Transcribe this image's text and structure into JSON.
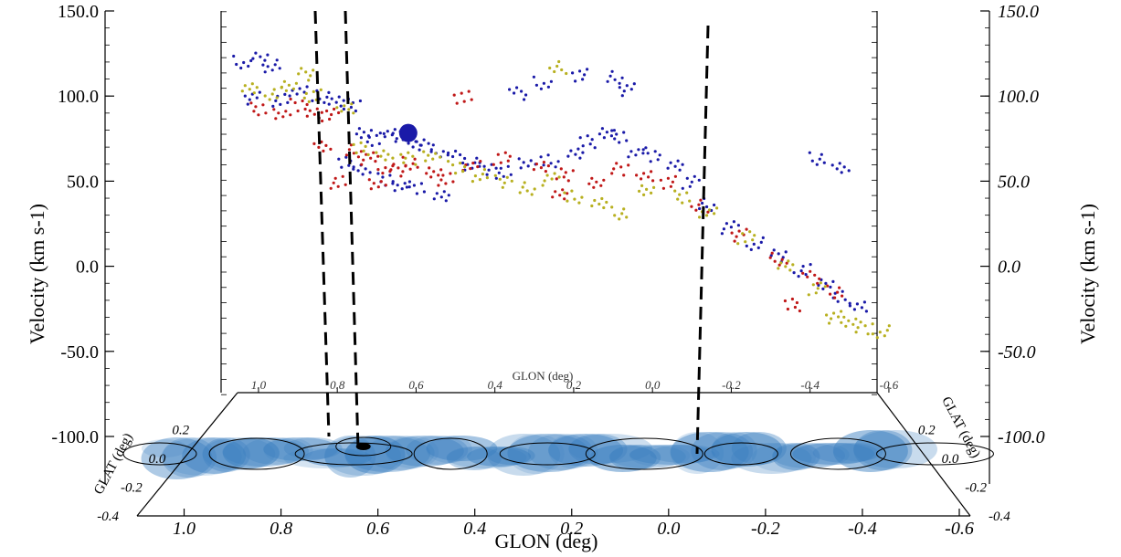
{
  "chart_data": {
    "type": "scatter",
    "projection": "3d-position-position-velocity",
    "xlabel": "GLON (deg)",
    "ylabel_left": "Velocity (km s-1)",
    "ylabel_right": "Velocity (km s-1)",
    "zlabel": "GLAT (deg)",
    "xlim": [
      1.1,
      -0.6
    ],
    "ylim": [
      -100,
      150
    ],
    "zlim": [
      -0.4,
      0.4
    ],
    "grid": false,
    "legend": "none",
    "left_ticks": [
      "150.0",
      "100.0",
      "50.0",
      "0.0",
      "-50.0",
      "-100.0"
    ],
    "right_ticks": [
      "150.0",
      "100.0",
      "50.0",
      "0.0",
      "-50.0",
      "-100.0"
    ],
    "bottom_x_ticks": [
      "1.0",
      "0.8",
      "0.6",
      "0.4",
      "0.2",
      "0.0",
      "-0.2",
      "-0.4",
      "-0.6"
    ],
    "top_x_ticks": [
      "1.0",
      "0.8",
      "0.6",
      "0.4",
      "0.2",
      "0.0",
      "-0.2",
      "-0.4",
      "-0.6"
    ],
    "glat_ticks": [
      "0.2",
      "0.0",
      "-0.2",
      "-0.4"
    ],
    "series": [
      {
        "color": "#1a1aa8",
        "points": [
          [
            1.06,
            118
          ],
          [
            1.02,
            120
          ],
          [
            0.98,
            116
          ],
          [
            1.04,
            95
          ],
          [
            0.96,
            93
          ],
          [
            0.92,
            98
          ],
          [
            0.86,
            96
          ],
          [
            0.82,
            92
          ],
          [
            0.78,
            90
          ],
          [
            0.75,
            72
          ],
          [
            0.72,
            68
          ],
          [
            0.69,
            72
          ],
          [
            0.66,
            70
          ],
          [
            0.63,
            67
          ],
          [
            0.6,
            64
          ],
          [
            0.56,
            60
          ],
          [
            0.52,
            56
          ],
          [
            0.48,
            52
          ],
          [
            0.44,
            49
          ],
          [
            0.4,
            46
          ],
          [
            0.34,
            51
          ],
          [
            0.28,
            54
          ],
          [
            0.22,
            58
          ],
          [
            0.18,
            66
          ],
          [
            0.14,
            72
          ],
          [
            0.1,
            70
          ],
          [
            0.06,
            60
          ],
          [
            0.02,
            57
          ],
          [
            -0.04,
            52
          ],
          [
            -0.08,
            40
          ],
          [
            -0.12,
            25
          ],
          [
            -0.18,
            10
          ],
          [
            -0.24,
            0
          ],
          [
            -0.3,
            -8
          ],
          [
            -0.36,
            -18
          ],
          [
            -0.42,
            -28
          ],
          [
            -0.46,
            -35
          ],
          [
            -0.5,
            -42
          ],
          [
            0.8,
            52
          ],
          [
            0.76,
            48
          ],
          [
            0.7,
            42
          ],
          [
            0.66,
            38
          ],
          [
            0.62,
            36
          ],
          [
            0.56,
            32
          ],
          [
            0.2,
            110
          ],
          [
            0.12,
            108
          ],
          [
            0.08,
            100
          ],
          [
            0.3,
            105
          ],
          [
            0.36,
            98
          ],
          [
            -0.4,
            55
          ],
          [
            -0.46,
            48
          ]
        ]
      },
      {
        "color": "#c01818",
        "points": [
          [
            1.02,
            88
          ],
          [
            0.96,
            85
          ],
          [
            0.92,
            90
          ],
          [
            0.88,
            86
          ],
          [
            0.84,
            84
          ],
          [
            0.78,
            60
          ],
          [
            0.74,
            55
          ],
          [
            0.7,
            50
          ],
          [
            0.67,
            48
          ],
          [
            0.63,
            52
          ],
          [
            0.58,
            45
          ],
          [
            0.54,
            42
          ],
          [
            0.48,
            50
          ],
          [
            0.4,
            55
          ],
          [
            0.3,
            50
          ],
          [
            0.24,
            45
          ],
          [
            0.16,
            40
          ],
          [
            0.1,
            48
          ],
          [
            0.04,
            45
          ],
          [
            -0.02,
            40
          ],
          [
            -0.1,
            24
          ],
          [
            -0.2,
            5
          ],
          [
            -0.3,
            -10
          ],
          [
            -0.38,
            -22
          ],
          [
            -0.44,
            -32
          ],
          [
            0.86,
            62
          ],
          [
            0.82,
            40
          ],
          [
            0.72,
            38
          ],
          [
            0.5,
            95
          ],
          [
            0.26,
            32
          ],
          [
            -0.34,
            -40
          ]
        ]
      },
      {
        "color": "#b8b020",
        "points": [
          [
            1.04,
            100
          ],
          [
            0.98,
            98
          ],
          [
            0.94,
            102
          ],
          [
            0.88,
            96
          ],
          [
            0.8,
            88
          ],
          [
            0.76,
            62
          ],
          [
            0.7,
            58
          ],
          [
            0.64,
            55
          ],
          [
            0.58,
            58
          ],
          [
            0.52,
            50
          ],
          [
            0.46,
            44
          ],
          [
            0.4,
            40
          ],
          [
            0.34,
            36
          ],
          [
            0.28,
            42
          ],
          [
            0.22,
            30
          ],
          [
            0.16,
            25
          ],
          [
            0.1,
            20
          ],
          [
            0.04,
            34
          ],
          [
            -0.06,
            30
          ],
          [
            -0.12,
            20
          ],
          [
            -0.22,
            4
          ],
          [
            -0.32,
            -14
          ],
          [
            -0.4,
            -30
          ],
          [
            -0.48,
            -50
          ],
          [
            -0.52,
            -55
          ],
          [
            -0.56,
            -58
          ],
          [
            0.9,
            110
          ],
          [
            0.26,
            115
          ],
          [
            -0.44,
            -48
          ]
        ]
      }
    ],
    "map_contours_glon": [
      1.05,
      0.85,
      0.65,
      0.45,
      0.25,
      0.05,
      -0.15,
      -0.35,
      -0.55
    ],
    "dashed_markers_glon": [
      0.69,
      0.63,
      -0.09
    ]
  }
}
